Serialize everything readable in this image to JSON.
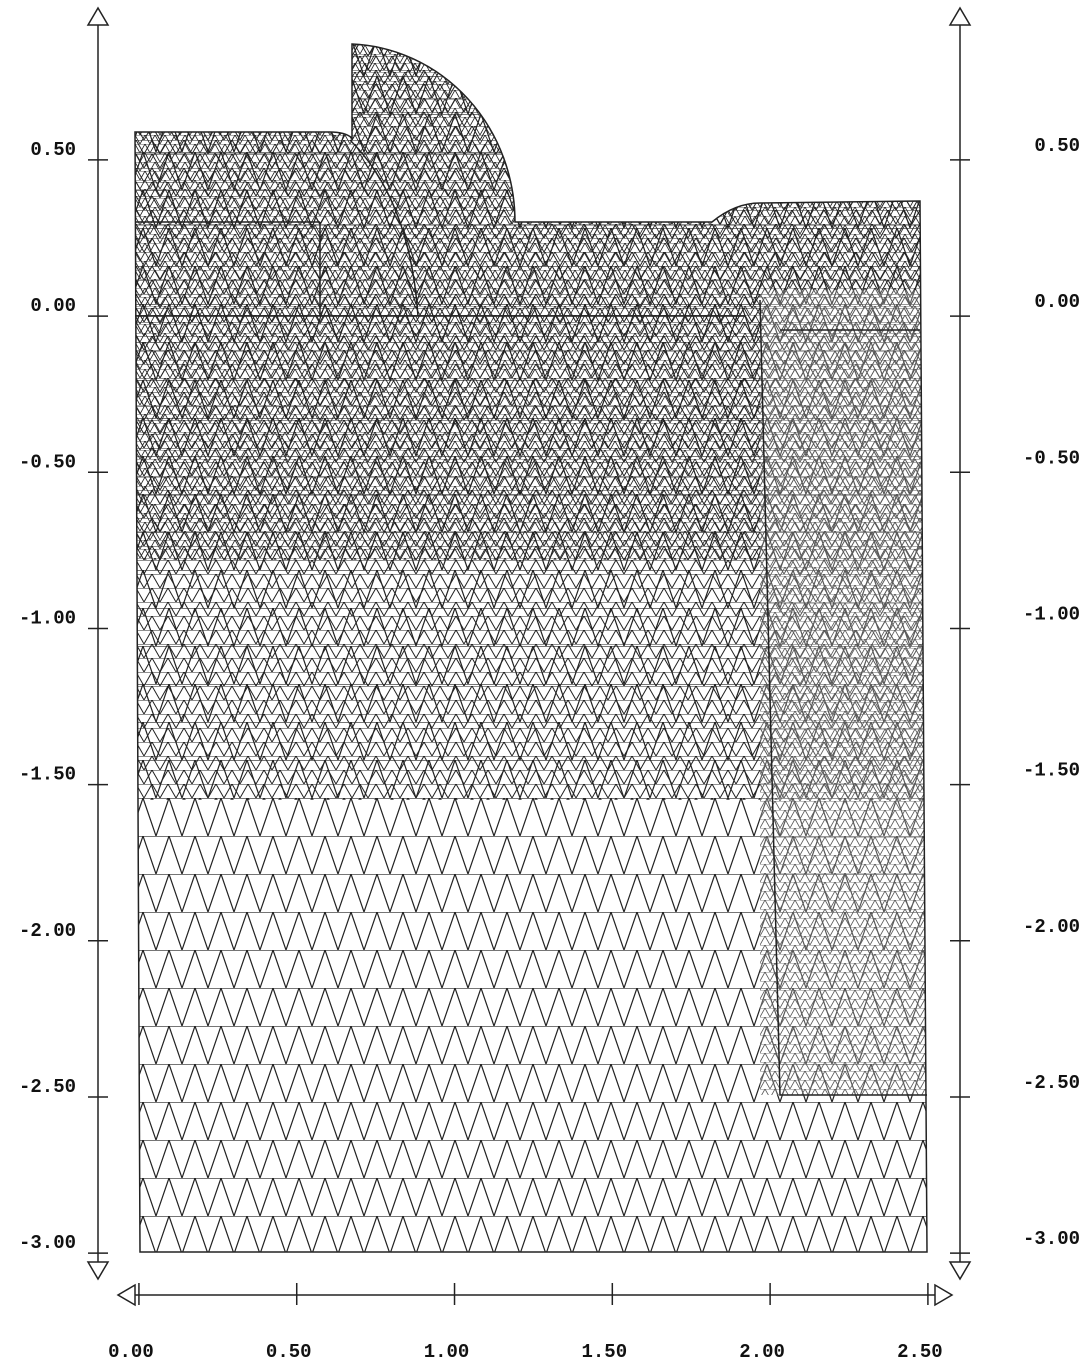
{
  "chart_data": {
    "type": "mesh",
    "xlim": [
      -0.06,
      2.57
    ],
    "ylim": [
      -3.07,
      0.98
    ],
    "xticks": [
      {
        "value": 0,
        "label": "0.00"
      },
      {
        "value": 0.5,
        "label": "0.50"
      },
      {
        "value": 1,
        "label": "1.00"
      },
      {
        "value": 1.5,
        "label": "1.50"
      },
      {
        "value": 2,
        "label": "2.00"
      },
      {
        "value": 2.5,
        "label": "2.50"
      }
    ],
    "yticks": [
      {
        "value": 0.5,
        "label": "0.50"
      },
      {
        "value": 0,
        "label": "0.00"
      },
      {
        "value": -0.5,
        "label": "-0.50"
      },
      {
        "value": -1,
        "label": "-1.00"
      },
      {
        "value": -1.5,
        "label": "-1.50"
      },
      {
        "value": -2,
        "label": "-2.00"
      },
      {
        "value": -2.5,
        "label": "-2.50"
      },
      {
        "value": -3,
        "label": "-3.00"
      }
    ]
  }
}
